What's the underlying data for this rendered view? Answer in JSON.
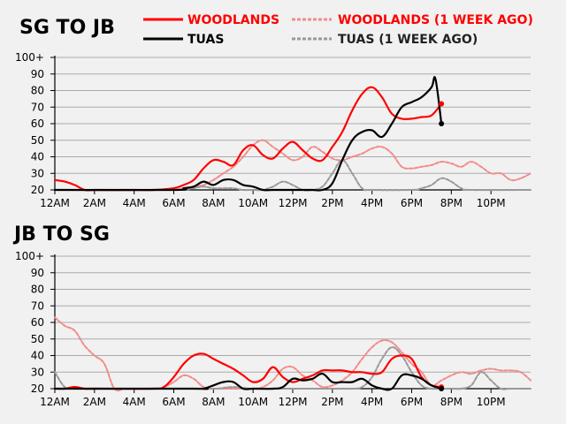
{
  "legend": {
    "woodlands": "WOODLANDS",
    "woodlands_prev": "WOODLANDS (1 WEEK AGO)",
    "tuas": "TUAS",
    "tuas_prev": "TUAS (1 WEEK AGO)"
  },
  "colors": {
    "woodlands": "#ff0000",
    "woodlands_prev": "#f28b8b",
    "tuas": "#000000",
    "tuas_prev": "#999999",
    "grid": "#aaaaaa"
  },
  "chart_data": [
    {
      "type": "line",
      "title": "SG TO JB",
      "xlim": [
        0,
        24
      ],
      "ylim": [
        20,
        100
      ],
      "yticks": [
        20,
        30,
        40,
        50,
        60,
        70,
        80,
        90,
        100
      ],
      "ytick_labels": [
        "20",
        "30",
        "40",
        "50",
        "60",
        "70",
        "80",
        "90",
        "100+"
      ],
      "xticks": [
        0,
        2,
        4,
        6,
        8,
        10,
        12,
        14,
        16,
        18,
        20,
        22
      ],
      "xtick_labels": [
        "12AM",
        "2AM",
        "4AM",
        "6AM",
        "8AM",
        "10AM",
        "12PM",
        "2PM",
        "4PM",
        "6PM",
        "8PM",
        "10PM"
      ],
      "grid": true,
      "legend_position": "top",
      "series": [
        {
          "key": "woodlands_prev",
          "dashed": true,
          "name": "WOODLANDS (1 WEEK AGO)",
          "x": [
            0,
            5,
            6,
            6.5,
            7,
            7.5,
            8,
            8.5,
            9,
            9.5,
            10,
            10.5,
            11,
            11.5,
            12,
            12.5,
            13,
            13.5,
            14,
            14.5,
            15,
            15.5,
            16,
            16.5,
            17,
            17.5,
            18,
            18.5,
            19,
            19.5,
            20,
            20.5,
            21,
            21.5,
            22,
            22.5,
            23,
            23.5,
            24
          ],
          "y": [
            20,
            20,
            20,
            21,
            22,
            23,
            26,
            30,
            34,
            40,
            47,
            50,
            46,
            42,
            38,
            40,
            46,
            43,
            39,
            38,
            40,
            42,
            45,
            46,
            42,
            34,
            33,
            34,
            35,
            37,
            36,
            34,
            37,
            34,
            30,
            30,
            26,
            27,
            30
          ]
        },
        {
          "key": "tuas_prev",
          "dashed": true,
          "name": "TUAS (1 WEEK AGO)",
          "x": [
            0,
            6,
            6.5,
            7,
            7.5,
            8,
            8.5,
            9,
            9.5,
            10,
            10.5,
            11,
            11.5,
            12,
            12.5,
            13,
            13.5,
            14,
            14.5,
            15,
            15.5,
            16,
            18,
            18.5,
            19,
            19.5,
            20,
            20.5,
            21,
            24
          ],
          "y": [
            20,
            20,
            20,
            21,
            22,
            21,
            21,
            21,
            20,
            20,
            20,
            22,
            25,
            23,
            20,
            20,
            22,
            30,
            38,
            30,
            21,
            20,
            20,
            21,
            23,
            27,
            25,
            21,
            20,
            20
          ]
        },
        {
          "key": "woodlands",
          "dashed": false,
          "name": "WOODLANDS",
          "x": [
            0,
            0.5,
            1,
            1.5,
            2,
            3,
            4,
            5,
            6,
            6.5,
            7,
            7.5,
            8,
            8.5,
            9,
            9.5,
            10,
            10.5,
            11,
            11.5,
            12,
            12.5,
            13,
            13.5,
            14,
            14.5,
            15,
            15.5,
            16,
            16.5,
            17,
            17.5,
            18,
            18.5,
            19,
            19.5
          ],
          "y": [
            26,
            25,
            23,
            20,
            20,
            20,
            20,
            20,
            21,
            23,
            26,
            33,
            38,
            37,
            35,
            44,
            47,
            41,
            39,
            45,
            49,
            44,
            39,
            38,
            46,
            55,
            68,
            78,
            82,
            76,
            66,
            63,
            63,
            64,
            65,
            72
          ]
        },
        {
          "key": "tuas",
          "dashed": false,
          "name": "TUAS",
          "x": [
            0,
            6,
            6.5,
            7,
            7.5,
            8,
            8.5,
            9,
            9.5,
            10,
            10.5,
            11,
            11.5,
            12,
            12.5,
            13,
            13.5,
            14,
            14.5,
            15,
            15.5,
            16,
            16.5,
            17,
            17.5,
            18,
            18.5,
            19,
            19.2,
            19.5
          ],
          "y": [
            20,
            20,
            21,
            22,
            25,
            23,
            26,
            26,
            23,
            22,
            20,
            20,
            20,
            20,
            20,
            20,
            20,
            24,
            38,
            50,
            55,
            56,
            52,
            60,
            70,
            73,
            76,
            82,
            87,
            60
          ]
        }
      ],
      "end_points": [
        {
          "key": "woodlands",
          "x": 19.5,
          "y": 72
        },
        {
          "key": "tuas",
          "x": 19.5,
          "y": 60
        }
      ]
    },
    {
      "type": "line",
      "title": "JB TO SG",
      "xlim": [
        0,
        24
      ],
      "ylim": [
        20,
        100
      ],
      "yticks": [
        20,
        30,
        40,
        50,
        60,
        70,
        80,
        90,
        100
      ],
      "ytick_labels": [
        "20",
        "30",
        "40",
        "50",
        "60",
        "70",
        "80",
        "90",
        "100+"
      ],
      "xticks": [
        0,
        2,
        4,
        6,
        8,
        10,
        12,
        14,
        16,
        18,
        20,
        22
      ],
      "xtick_labels": [
        "12AM",
        "2AM",
        "4AM",
        "6AM",
        "8AM",
        "10AM",
        "12PM",
        "2PM",
        "4PM",
        "6PM",
        "8PM",
        "10PM"
      ],
      "grid": true,
      "series": [
        {
          "key": "woodlands_prev",
          "dashed": true,
          "name": "WOODLANDS (1 WEEK AGO)",
          "x": [
            0,
            0.5,
            1,
            1.5,
            2,
            2.5,
            3,
            3.5,
            4,
            5,
            5.5,
            6,
            6.5,
            7,
            7.5,
            8,
            8.5,
            9,
            9.5,
            10,
            10.5,
            11,
            11.5,
            12,
            12.5,
            13,
            13.5,
            14,
            14.5,
            15,
            15.5,
            16,
            16.5,
            17,
            17.5,
            18,
            18.5,
            19,
            19.5,
            20,
            20.5,
            21,
            21.5,
            22,
            22.5,
            23,
            23.5,
            24
          ],
          "y": [
            63,
            58,
            55,
            46,
            40,
            35,
            20,
            20,
            20,
            20,
            21,
            24,
            28,
            26,
            21,
            20,
            20,
            20,
            20,
            20,
            21,
            25,
            32,
            33,
            28,
            25,
            21,
            22,
            25,
            30,
            38,
            45,
            49,
            48,
            42,
            35,
            30,
            22,
            25,
            28,
            30,
            29,
            31,
            32,
            31,
            31,
            30,
            25
          ]
        },
        {
          "key": "tuas_prev",
          "dashed": true,
          "name": "TUAS (1 WEEK AGO)",
          "x": [
            0,
            0.5,
            1,
            6,
            8,
            9,
            10,
            12,
            14,
            15,
            15.5,
            16,
            16.5,
            17,
            17.5,
            18,
            18.5,
            19,
            19.5,
            20,
            20.5,
            21,
            21.5,
            22,
            22.5,
            23,
            24
          ],
          "y": [
            30,
            21,
            20,
            20,
            20,
            21,
            20,
            20,
            20,
            20,
            21,
            27,
            38,
            45,
            40,
            30,
            22,
            20,
            20,
            20,
            20,
            22,
            30,
            25,
            20,
            20,
            20
          ]
        },
        {
          "key": "woodlands",
          "dashed": false,
          "name": "WOODLANDS",
          "x": [
            0,
            0.5,
            1,
            1.5,
            2,
            5,
            5.5,
            6,
            6.5,
            7,
            7.5,
            8,
            8.5,
            9,
            9.5,
            10,
            10.5,
            11,
            11.5,
            12,
            12.5,
            13,
            13.5,
            14,
            14.5,
            15,
            15.5,
            16,
            16.5,
            17,
            17.5,
            18,
            18.5,
            19,
            19.5
          ],
          "y": [
            20,
            20,
            21,
            20,
            20,
            20,
            21,
            27,
            35,
            40,
            41,
            38,
            35,
            32,
            28,
            24,
            26,
            33,
            27,
            24,
            26,
            28,
            31,
            31,
            31,
            30,
            30,
            29,
            30,
            38,
            40,
            38,
            27,
            22,
            21
          ]
        },
        {
          "key": "tuas",
          "dashed": false,
          "name": "TUAS",
          "x": [
            0,
            7,
            7.5,
            8,
            8.5,
            9,
            9.5,
            10,
            11,
            11.5,
            12,
            12.5,
            13,
            13.5,
            14,
            14.5,
            15,
            15.5,
            16,
            16.5,
            17,
            17.5,
            18,
            18.5,
            19,
            19.5
          ],
          "y": [
            20,
            20,
            20,
            22,
            24,
            24,
            20,
            20,
            20,
            21,
            26,
            25,
            26,
            29,
            24,
            24,
            24,
            26,
            22,
            20,
            20,
            28,
            28,
            26,
            22,
            20
          ]
        }
      ],
      "end_points": [
        {
          "key": "woodlands",
          "x": 19.5,
          "y": 21
        },
        {
          "key": "tuas",
          "x": 19.5,
          "y": 20
        }
      ]
    }
  ]
}
